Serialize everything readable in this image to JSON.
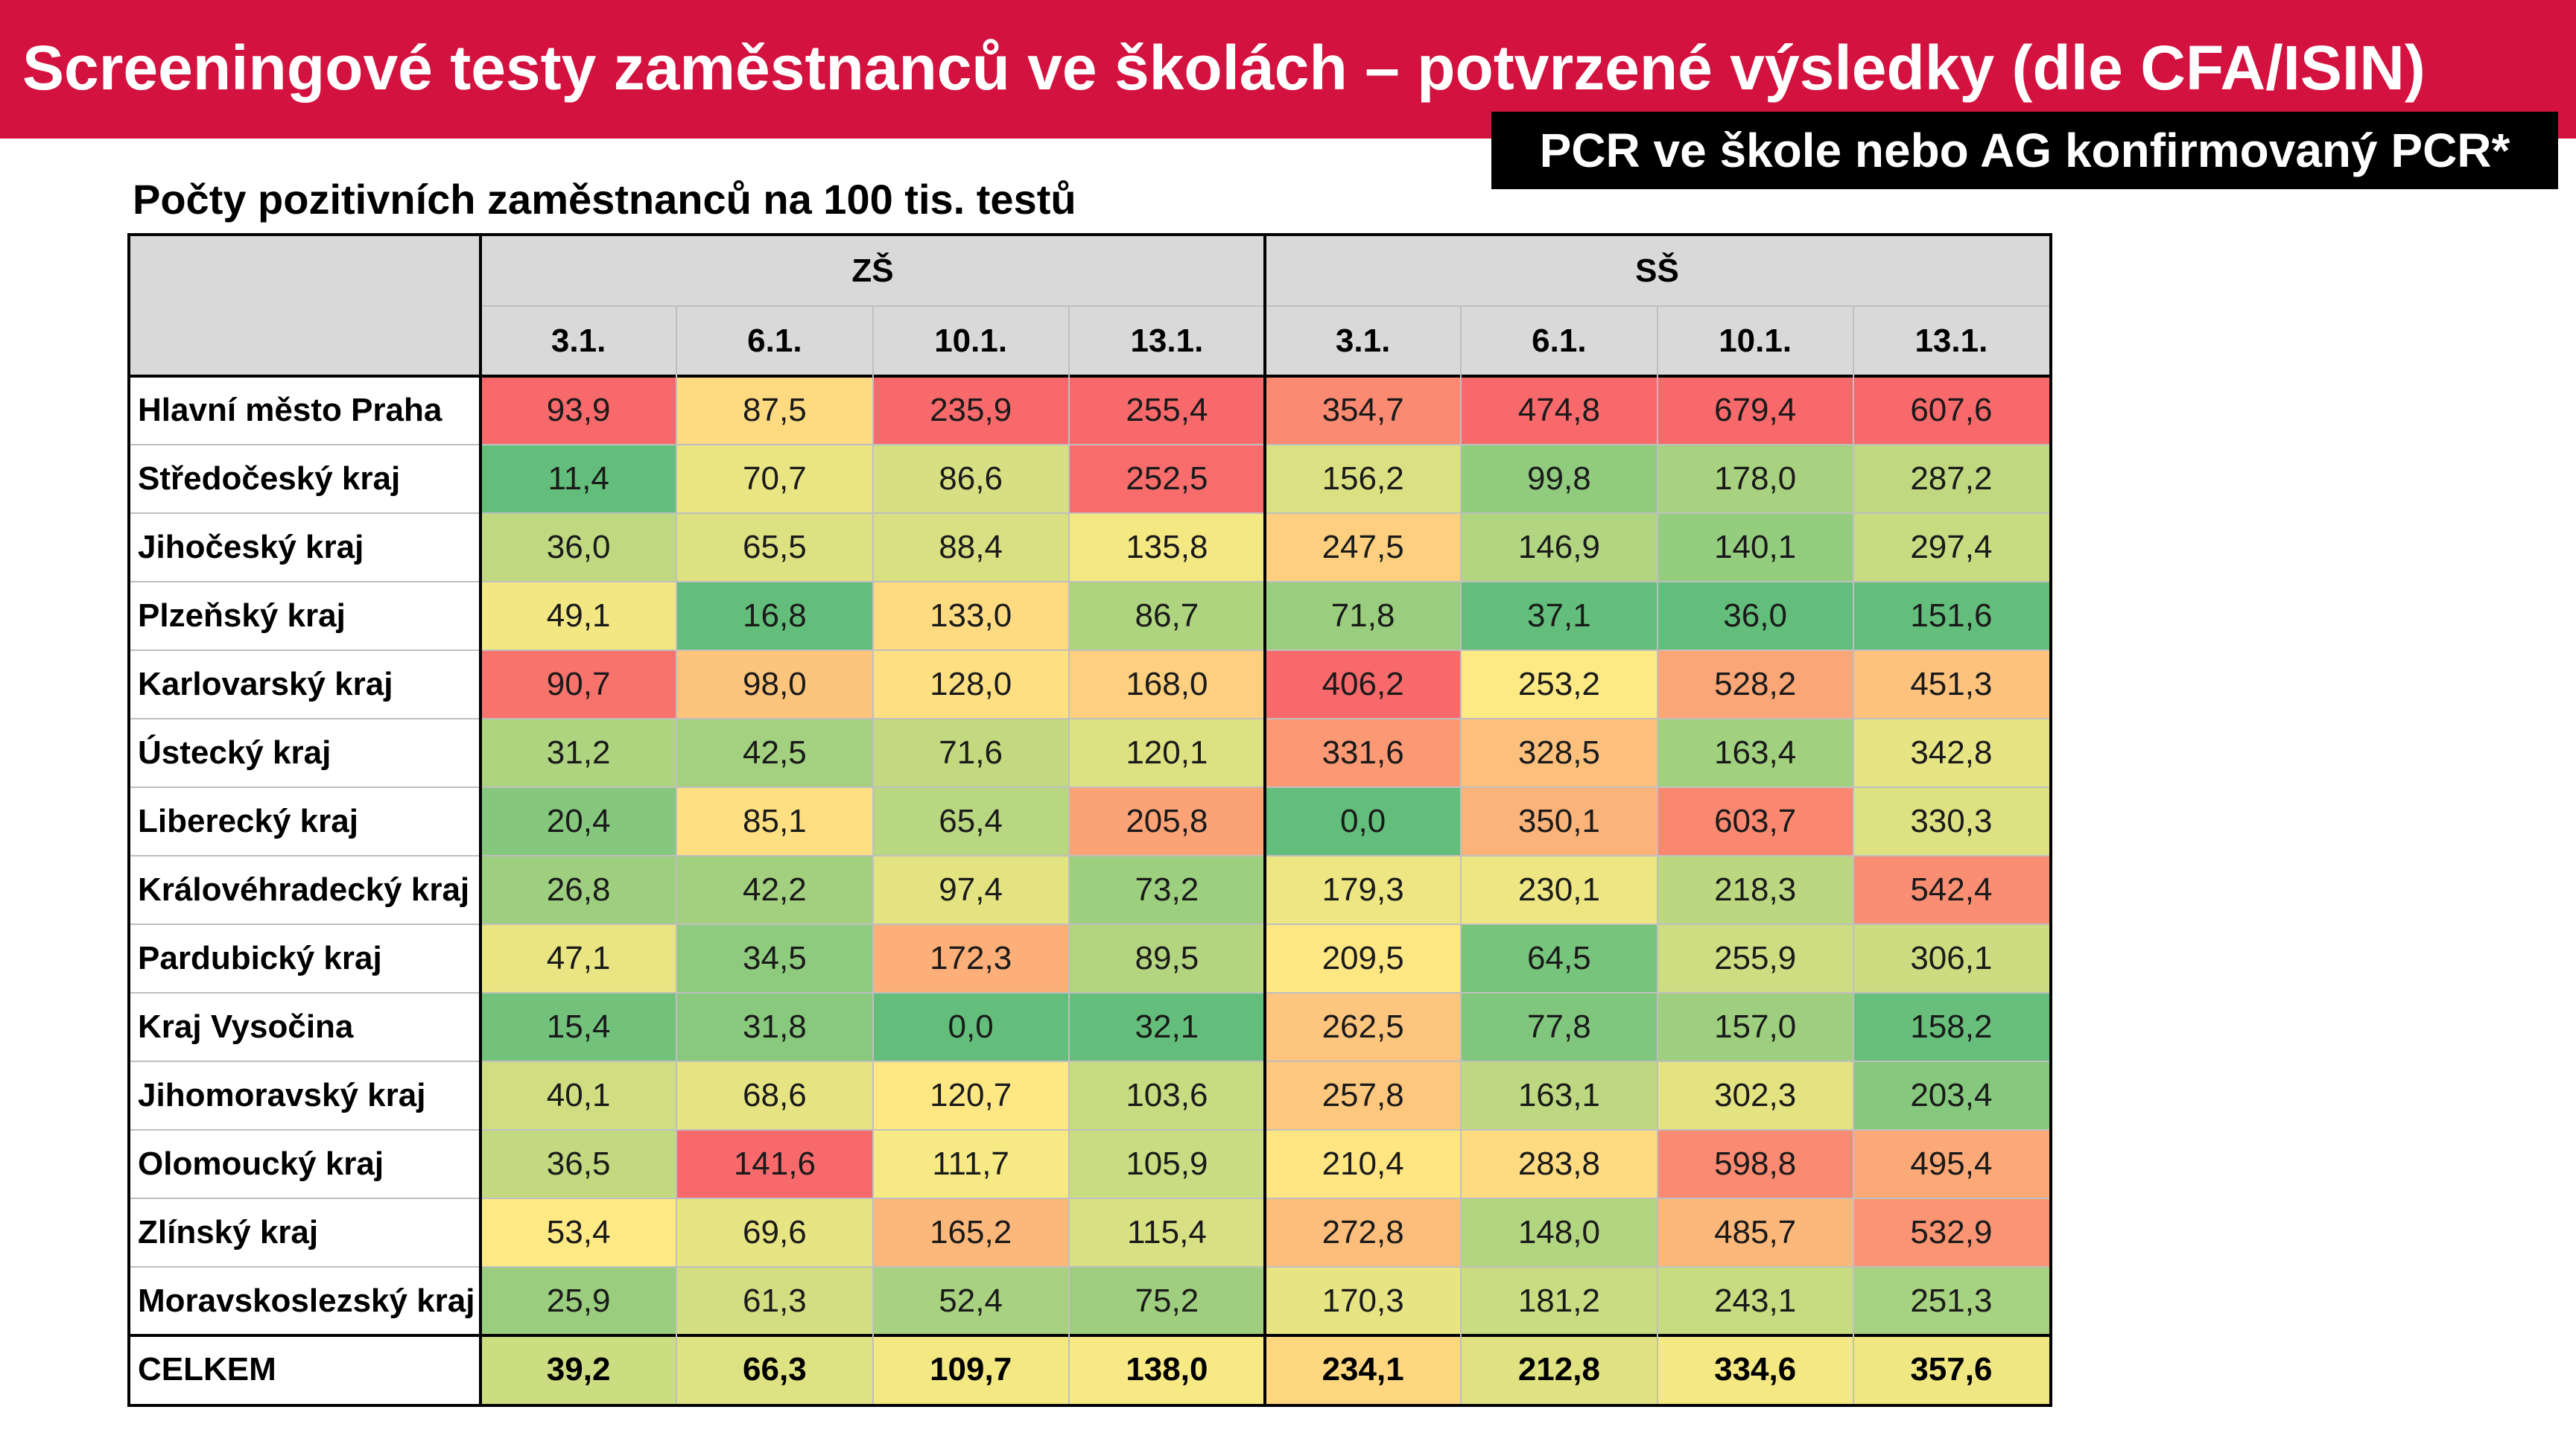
{
  "header": {
    "title": "Screeningové testy zaměstnanců ve školách – potvrzené výsledky (dle CFA/ISIN)",
    "subtitle": "PCR ve škole nebo AG konfirmovaný PCR*"
  },
  "chart_data": {
    "type": "heatmap",
    "title": "Počty pozitivních zaměstnanců na 100 tis. testů",
    "groups": [
      {
        "name": "ZŠ",
        "dates": [
          "3.1.",
          "6.1.",
          "10.1.",
          "13.1."
        ]
      },
      {
        "name": "SŠ",
        "dates": [
          "3.1.",
          "6.1.",
          "10.1.",
          "13.1."
        ]
      }
    ],
    "rows": [
      {
        "region": "Hlavní město Praha",
        "values": [
          "93,9",
          "87,5",
          "235,9",
          "255,4",
          "354,7",
          "474,8",
          "679,4",
          "607,6"
        ]
      },
      {
        "region": "Středočeský kraj",
        "values": [
          "11,4",
          "70,7",
          "86,6",
          "252,5",
          "156,2",
          "99,8",
          "178,0",
          "287,2"
        ]
      },
      {
        "region": "Jihočeský kraj",
        "values": [
          "36,0",
          "65,5",
          "88,4",
          "135,8",
          "247,5",
          "146,9",
          "140,1",
          "297,4"
        ]
      },
      {
        "region": "Plzeňský kraj",
        "values": [
          "49,1",
          "16,8",
          "133,0",
          "86,7",
          "71,8",
          "37,1",
          "36,0",
          "151,6"
        ]
      },
      {
        "region": "Karlovarský kraj",
        "values": [
          "90,7",
          "98,0",
          "128,0",
          "168,0",
          "406,2",
          "253,2",
          "528,2",
          "451,3"
        ]
      },
      {
        "region": "Ústecký kraj",
        "values": [
          "31,2",
          "42,5",
          "71,6",
          "120,1",
          "331,6",
          "328,5",
          "163,4",
          "342,8"
        ]
      },
      {
        "region": "Liberecký kraj",
        "values": [
          "20,4",
          "85,1",
          "65,4",
          "205,8",
          "0,0",
          "350,1",
          "603,7",
          "330,3"
        ]
      },
      {
        "region": "Královéhradecký kraj",
        "values": [
          "26,8",
          "42,2",
          "97,4",
          "73,2",
          "179,3",
          "230,1",
          "218,3",
          "542,4"
        ]
      },
      {
        "region": "Pardubický kraj",
        "values": [
          "47,1",
          "34,5",
          "172,3",
          "89,5",
          "209,5",
          "64,5",
          "255,9",
          "306,1"
        ]
      },
      {
        "region": "Kraj Vysočina",
        "values": [
          "15,4",
          "31,8",
          "0,0",
          "32,1",
          "262,5",
          "77,8",
          "157,0",
          "158,2"
        ]
      },
      {
        "region": "Jihomoravský kraj",
        "values": [
          "40,1",
          "68,6",
          "120,7",
          "103,6",
          "257,8",
          "163,1",
          "302,3",
          "203,4"
        ]
      },
      {
        "region": "Olomoucký kraj",
        "values": [
          "36,5",
          "141,6",
          "111,7",
          "105,9",
          "210,4",
          "283,8",
          "598,8",
          "495,4"
        ]
      },
      {
        "region": "Zlínský kraj",
        "values": [
          "53,4",
          "69,6",
          "165,2",
          "115,4",
          "272,8",
          "148,0",
          "485,7",
          "532,9"
        ]
      },
      {
        "region": "Moravskoslezský kraj",
        "values": [
          "25,9",
          "61,3",
          "52,4",
          "75,2",
          "170,3",
          "181,2",
          "243,1",
          "251,3"
        ]
      }
    ],
    "total": {
      "label": "CELKEM",
      "values": [
        "39,2",
        "66,3",
        "109,7",
        "138,0",
        "234,1",
        "212,8",
        "334,6",
        "357,6"
      ]
    },
    "color_scale": {
      "low": "#63be7b",
      "mid": "#ffeb84",
      "high": "#f8696b",
      "scope": "per column"
    }
  }
}
